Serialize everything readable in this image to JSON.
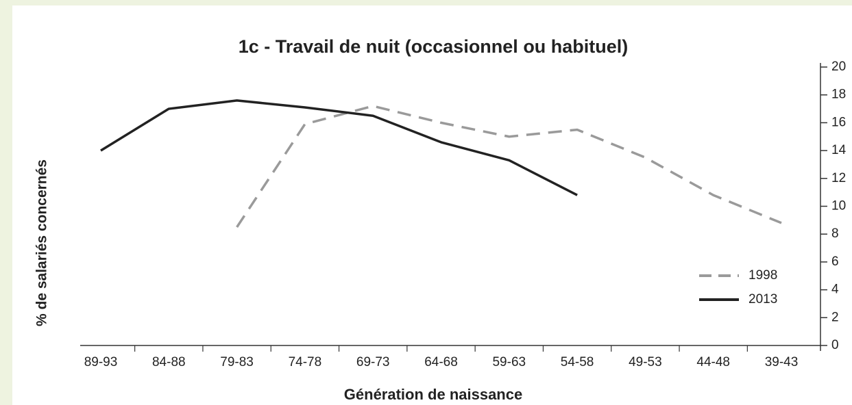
{
  "chart_data": {
    "type": "line",
    "title": "1c - Travail de nuit (occasionnel ou habituel)",
    "x_label": "Génération de naissance",
    "y_label": "% de salariés concernés",
    "categories": [
      "89-93",
      "84-88",
      "79-83",
      "74-78",
      "69-73",
      "64-68",
      "59-63",
      "54-58",
      "49-53",
      "44-48",
      "39-43"
    ],
    "series": [
      {
        "name": "1998",
        "color": "#9a9a9a",
        "dash": true,
        "values": [
          null,
          null,
          8.5,
          15.9,
          17.2,
          16.0,
          15.0,
          15.5,
          13.5,
          10.8,
          8.8
        ]
      },
      {
        "name": "2013",
        "color": "#222222",
        "dash": false,
        "values": [
          14.0,
          17.0,
          17.6,
          17.1,
          16.5,
          14.6,
          13.3,
          10.8,
          null,
          null,
          null
        ]
      }
    ],
    "ylim": [
      0,
      20
    ],
    "yticks": [
      0,
      2,
      4,
      6,
      8,
      10,
      12,
      14,
      16,
      18,
      20
    ],
    "y_axis_side": "right",
    "legend": "right"
  }
}
